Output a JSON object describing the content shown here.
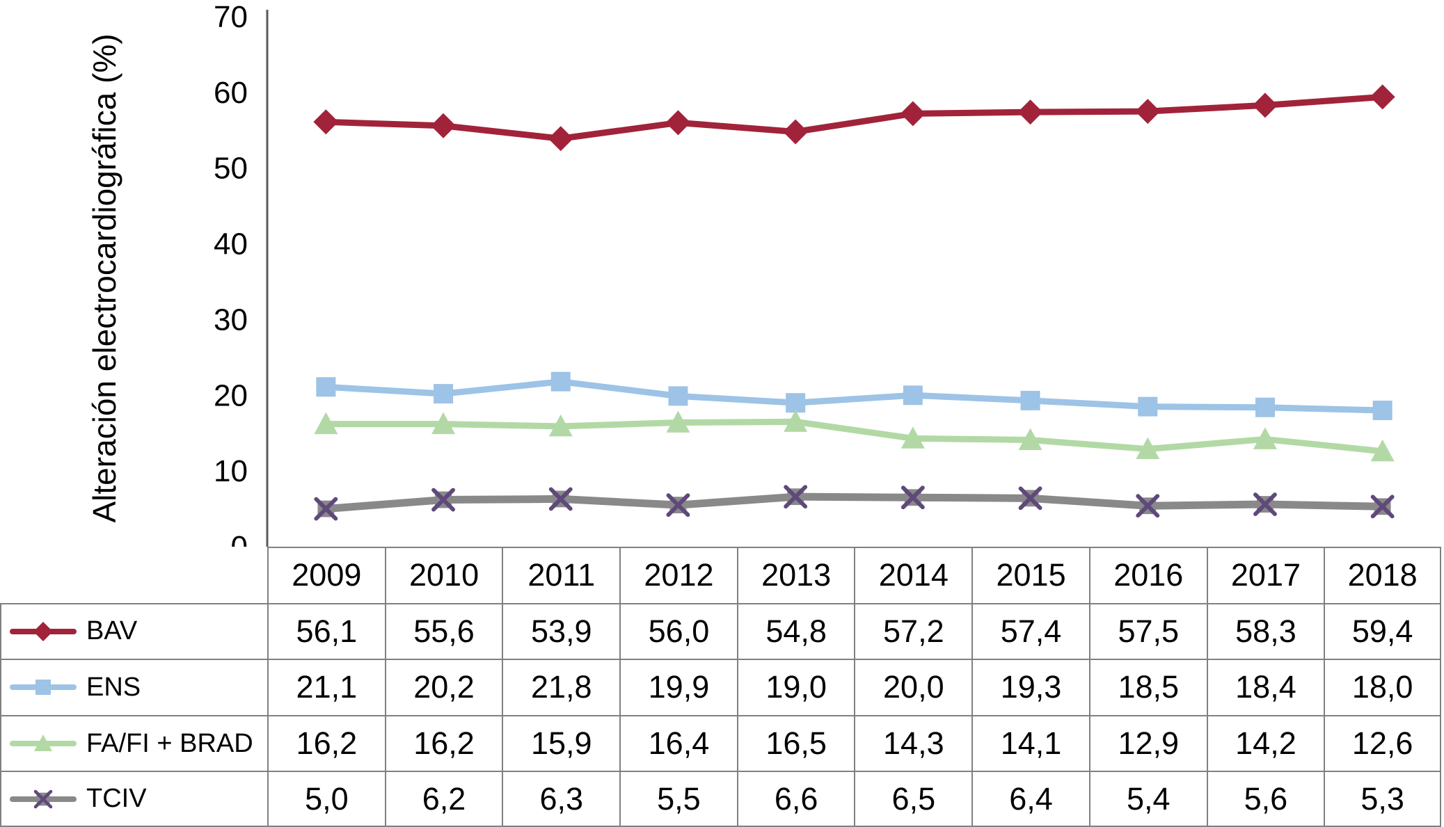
{
  "chart_data": {
    "type": "line",
    "title": "",
    "ylabel": "Alteración electrocardiográfica (%)",
    "xlabel": "",
    "ylim": [
      0,
      70
    ],
    "yticks": [
      0,
      10,
      20,
      30,
      40,
      50,
      60,
      70
    ],
    "categories": [
      "2009",
      "2010",
      "2011",
      "2012",
      "2013",
      "2014",
      "2015",
      "2016",
      "2017",
      "2018"
    ],
    "grid": false,
    "legend_position": "table-left",
    "axis_color": "#595959",
    "table_border_color": "#808080",
    "series": [
      {
        "name": "BAV",
        "color": "#A1233A",
        "marker": "diamond",
        "values": [
          56.1,
          55.6,
          53.9,
          56.0,
          54.8,
          57.2,
          57.4,
          57.5,
          58.3,
          59.4
        ],
        "values_display": [
          "56,1",
          "55,6",
          "53,9",
          "56,0",
          "54,8",
          "57,2",
          "57,4",
          "57,5",
          "58,3",
          "59,4"
        ]
      },
      {
        "name": "ENS",
        "color": "#9DC3E6",
        "marker": "square",
        "values": [
          21.1,
          20.2,
          21.8,
          19.9,
          19.0,
          20.0,
          19.3,
          18.5,
          18.4,
          18.0
        ],
        "values_display": [
          "21,1",
          "20,2",
          "21,8",
          "19,9",
          "19,0",
          "20,0",
          "19,3",
          "18,5",
          "18,4",
          "18,0"
        ]
      },
      {
        "name": "FA/FI + BRAD",
        "color": "#B2D9A5",
        "marker": "triangle",
        "values": [
          16.2,
          16.2,
          15.9,
          16.4,
          16.5,
          14.3,
          14.1,
          12.9,
          14.2,
          12.6
        ],
        "values_display": [
          "16,2",
          "16,2",
          "15,9",
          "16,4",
          "16,5",
          "14,3",
          "14,1",
          "12,9",
          "14,2",
          "12,6"
        ]
      },
      {
        "name": "TCIV",
        "color": "#898989",
        "marker": "x",
        "marker_accent": "#5F497A",
        "values": [
          5.0,
          6.2,
          6.3,
          5.5,
          6.6,
          6.5,
          6.4,
          5.4,
          5.6,
          5.3
        ],
        "values_display": [
          "5,0",
          "6,2",
          "6,3",
          "5,5",
          "6,6",
          "6,5",
          "6,4",
          "5,4",
          "5,6",
          "5,3"
        ]
      }
    ]
  }
}
